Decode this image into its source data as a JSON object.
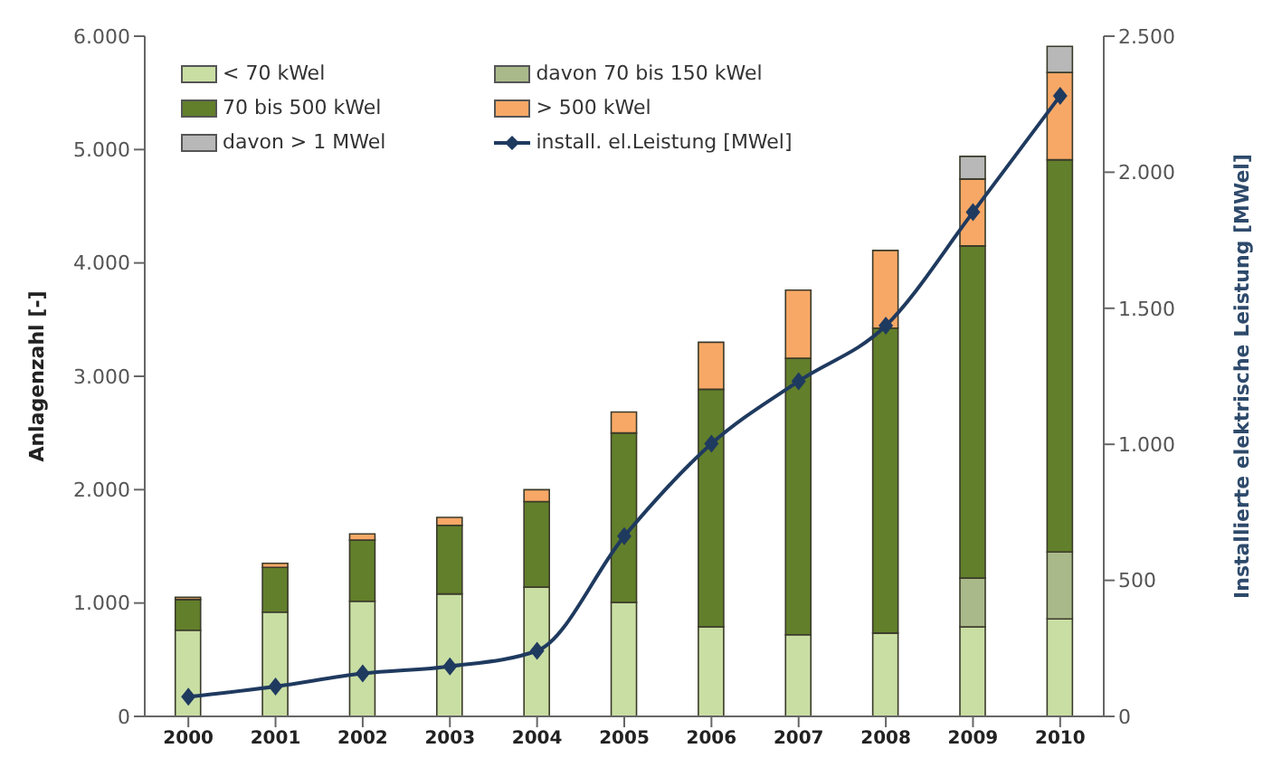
{
  "chart_data": {
    "type": "bar",
    "stacked": true,
    "categories": [
      "2000",
      "2001",
      "2002",
      "2003",
      "2004",
      "2005",
      "2006",
      "2007",
      "2008",
      "2009",
      "2010"
    ],
    "series": [
      {
        "name": "< 70 kWel",
        "color": "#c9dea3",
        "values": [
          760,
          920,
          1015,
          1080,
          1140,
          1005,
          790,
          720,
          735,
          790,
          860
        ]
      },
      {
        "name": "davon 70 bis 150 kWel",
        "color": "#aab98a",
        "values": [
          0,
          0,
          0,
          0,
          0,
          0,
          0,
          0,
          0,
          430,
          590
        ]
      },
      {
        "name": "70 bis 500 kWel",
        "color": "#627f2b",
        "values": [
          270,
          395,
          540,
          605,
          755,
          1495,
          2095,
          2440,
          2690,
          2930,
          3460
        ]
      },
      {
        "name": "> 500 kWel",
        "color": "#f8a866",
        "values": [
          20,
          35,
          55,
          70,
          105,
          185,
          415,
          600,
          685,
          590,
          770
        ]
      },
      {
        "name": "davon  > 1 MWel",
        "color": "#b8b8b8",
        "values": [
          0,
          0,
          0,
          0,
          0,
          0,
          0,
          0,
          0,
          200,
          230
        ]
      },
      {
        "name": "install. el.Leistung [MWel]",
        "type": "line",
        "axis": "y2",
        "color": "#1f3a5f",
        "marker": "diamond",
        "values": [
          72,
          110,
          158,
          184,
          241,
          662,
          1002,
          1232,
          1436,
          1853,
          2281
        ]
      }
    ],
    "ylabel": "Anlagenzahl [-]",
    "y2label": "Installierte elektrische Leistung  [MWel]",
    "ylim": [
      0,
      6000
    ],
    "yticks": [
      {
        "value": 0,
        "label": "0"
      },
      {
        "value": 1000,
        "label": "1.000"
      },
      {
        "value": 2000,
        "label": "2.000"
      },
      {
        "value": 3000,
        "label": "3.000"
      },
      {
        "value": 4000,
        "label": "4.000"
      },
      {
        "value": 5000,
        "label": "5.000"
      },
      {
        "value": 6000,
        "label": "6.000"
      }
    ],
    "y2lim": [
      0,
      2500
    ],
    "y2ticks": [
      0,
      500,
      {
        "value": 1000,
        "label": "1.000"
      },
      {
        "value": 1500,
        "label": "1.500"
      },
      {
        "value": 2000,
        "label": "2.000"
      },
      {
        "value": 2500,
        "label": "2.500"
      }
    ],
    "legend": "top left",
    "grid": false
  }
}
